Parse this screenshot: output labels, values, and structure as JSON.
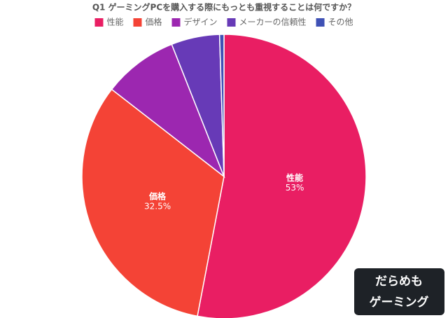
{
  "chart_data": {
    "type": "pie",
    "title": "Q1 ゲーミングPCを購入する際にもっとも重視することは何ですか？",
    "categories": [
      "性能",
      "価格",
      "デザイン",
      "メーカーの信頼性",
      "その他"
    ],
    "values": [
      53,
      32.5,
      8.5,
      5.5,
      0.5
    ],
    "value_labels": [
      "53%",
      "32.5%",
      null,
      null,
      null
    ],
    "colors": [
      "#e91e63",
      "#f44336",
      "#9c27b0",
      "#673ab7",
      "#3f51b5"
    ],
    "legend": "top"
  },
  "watermark": {
    "lines": [
      "だらめも",
      "ゲーミング"
    ]
  }
}
